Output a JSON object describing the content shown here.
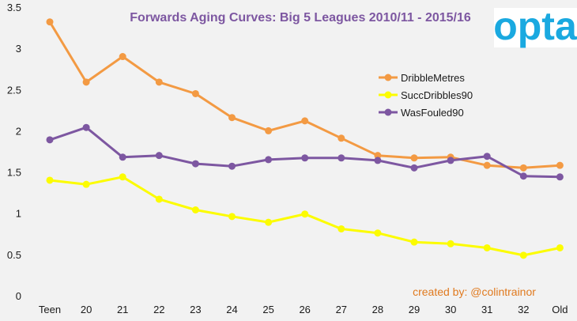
{
  "chart_data": {
    "type": "line",
    "title": "Forwards Aging Curves: Big 5 Leagues 2010/11 - 2015/16",
    "xlabel": "",
    "ylabel": "",
    "categories": [
      "Teen",
      "20",
      "21",
      "22",
      "23",
      "24",
      "25",
      "26",
      "27",
      "28",
      "29",
      "30",
      "31",
      "32",
      "Old"
    ],
    "ylim": [
      0,
      3.5
    ],
    "yticks": [
      "0",
      "0.5",
      "1",
      "1.5",
      "2",
      "2.5",
      "3",
      "3.5"
    ],
    "grid": false,
    "legend_position": "right",
    "series": [
      {
        "name": "DribbleMetres",
        "color": "#f39a43",
        "values": [
          3.33,
          2.6,
          2.91,
          2.6,
          2.46,
          2.17,
          2.01,
          2.13,
          1.92,
          1.71,
          1.68,
          1.69,
          1.59,
          1.56,
          1.59
        ]
      },
      {
        "name": "SuccDribbles90",
        "color": "#fcfc00",
        "values": [
          1.41,
          1.36,
          1.45,
          1.18,
          1.05,
          0.97,
          0.9,
          1.0,
          0.82,
          0.77,
          0.66,
          0.64,
          0.59,
          0.5,
          0.59
        ]
      },
      {
        "name": "WasFouled90",
        "color": "#7d57a1",
        "values": [
          1.9,
          2.05,
          1.69,
          1.71,
          1.61,
          1.58,
          1.66,
          1.68,
          1.68,
          1.65,
          1.56,
          1.65,
          1.7,
          1.46,
          1.45
        ]
      }
    ]
  },
  "logo": {
    "text": "opta",
    "color": "#1aa9e0"
  },
  "credit": {
    "text": "created by: @colintrainor",
    "color": "#e07a1f"
  },
  "title_color": "#7d57a1"
}
